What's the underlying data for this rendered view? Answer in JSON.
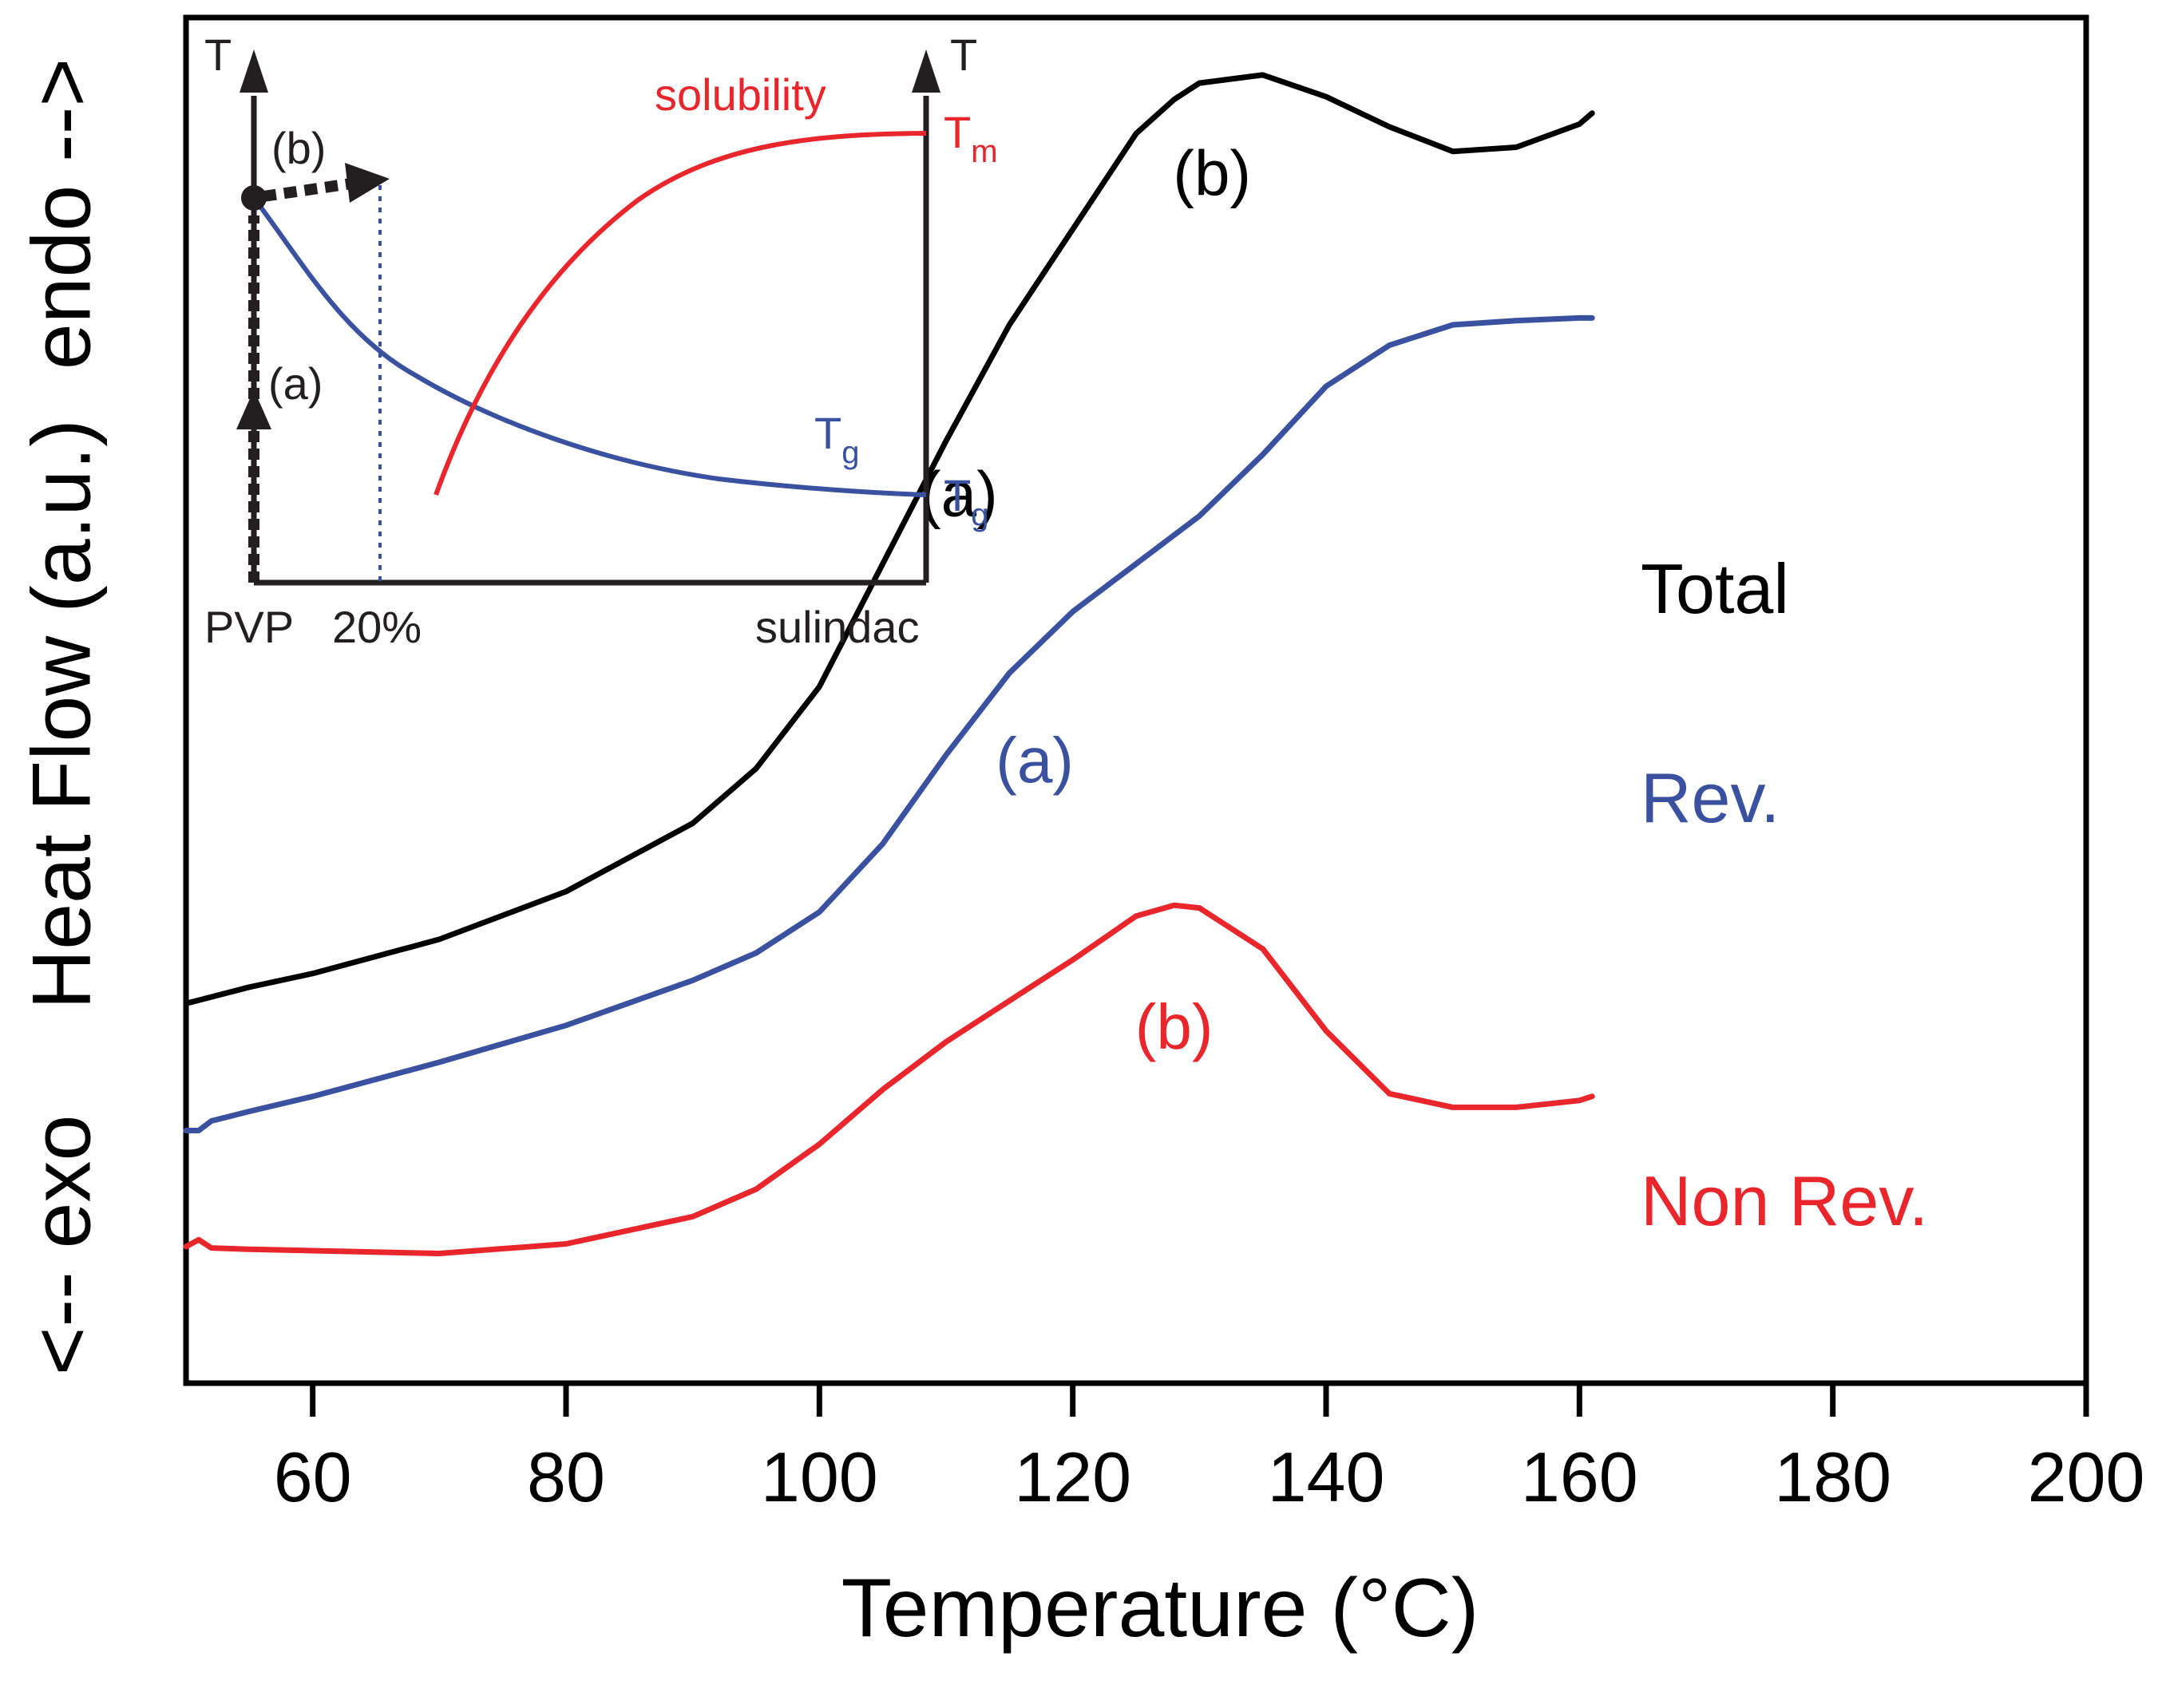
{
  "chart_data": {
    "type": "line",
    "xlabel": "Temperature (°C)",
    "ylabel": {
      "left_part": "<-- exo",
      "middle_part": "Heat Flow (a.u.)",
      "right_part": "endo -->"
    },
    "xlim": [
      50,
      200
    ],
    "ylim": [
      0,
      10
    ],
    "x_ticks": [
      "60",
      "80",
      "100",
      "120",
      "140",
      "160",
      "180",
      "200"
    ],
    "x_tick_values": [
      60,
      80,
      100,
      120,
      140,
      160,
      180,
      200
    ],
    "series": [
      {
        "name": "Total",
        "color": "#000000",
        "x": [
          50,
          55,
          60,
          70,
          80,
          90,
          95,
          100,
          105,
          110,
          115,
          120,
          125,
          128,
          130,
          135,
          140,
          145,
          150,
          155,
          160,
          161
        ],
        "y": [
          2.78,
          2.9,
          3.0,
          3.25,
          3.6,
          4.1,
          4.5,
          5.1,
          6.0,
          6.9,
          7.75,
          8.45,
          9.15,
          9.4,
          9.52,
          9.58,
          9.42,
          9.2,
          9.02,
          9.05,
          9.22,
          9.3
        ]
      },
      {
        "name": "Rev.",
        "color": "#3a51a0",
        "x": [
          50,
          51,
          52,
          55,
          60,
          70,
          80,
          90,
          95,
          100,
          105,
          110,
          115,
          120,
          125,
          130,
          135,
          140,
          145,
          150,
          155,
          160,
          161
        ],
        "y": [
          1.85,
          1.85,
          1.92,
          1.99,
          2.1,
          2.35,
          2.62,
          2.95,
          3.15,
          3.45,
          3.95,
          4.6,
          5.2,
          5.65,
          6.0,
          6.35,
          6.8,
          7.3,
          7.6,
          7.75,
          7.78,
          7.8,
          7.8
        ]
      },
      {
        "name": "Non Rev.",
        "color": "#e8262c",
        "x": [
          50,
          51,
          52,
          55,
          60,
          70,
          80,
          90,
          95,
          100,
          105,
          110,
          115,
          120,
          125,
          128,
          130,
          135,
          140,
          145,
          150,
          155,
          160,
          161
        ],
        "y": [
          1.0,
          1.05,
          0.99,
          0.98,
          0.97,
          0.95,
          1.02,
          1.22,
          1.42,
          1.75,
          2.15,
          2.5,
          2.8,
          3.1,
          3.42,
          3.5,
          3.48,
          3.18,
          2.58,
          2.12,
          2.02,
          2.02,
          2.07,
          2.1
        ]
      }
    ],
    "series_labels": [
      "Total",
      "Rev.",
      "Non Rev."
    ],
    "annotations": [
      {
        "text": "(a)",
        "series": "Total",
        "x": 111,
        "y": 6.35
      },
      {
        "text": "(b)",
        "series": "Total",
        "x": 131,
        "y": 8.7
      },
      {
        "text": "(a)",
        "series": "Rev.",
        "x": 117,
        "y": 4.4
      },
      {
        "text": "(b)",
        "series": "Non Rev.",
        "x": 128,
        "y": 2.45
      }
    ],
    "inset": {
      "type": "phase diagram",
      "x_left_label": "PVP",
      "x_right_label": "sulindac",
      "mark_label": "20%",
      "y_axis_label": "T",
      "curves": [
        {
          "name": "solubility",
          "color": "#e8262c",
          "right_label": "T",
          "right_label_sub": "m"
        },
        {
          "name": "Tg",
          "color": "#3a51a0",
          "label": "T",
          "label_sub": "g",
          "right_label": "T",
          "right_label_sub": "g"
        }
      ],
      "path_labels": [
        "(a)",
        "(b)"
      ]
    }
  }
}
